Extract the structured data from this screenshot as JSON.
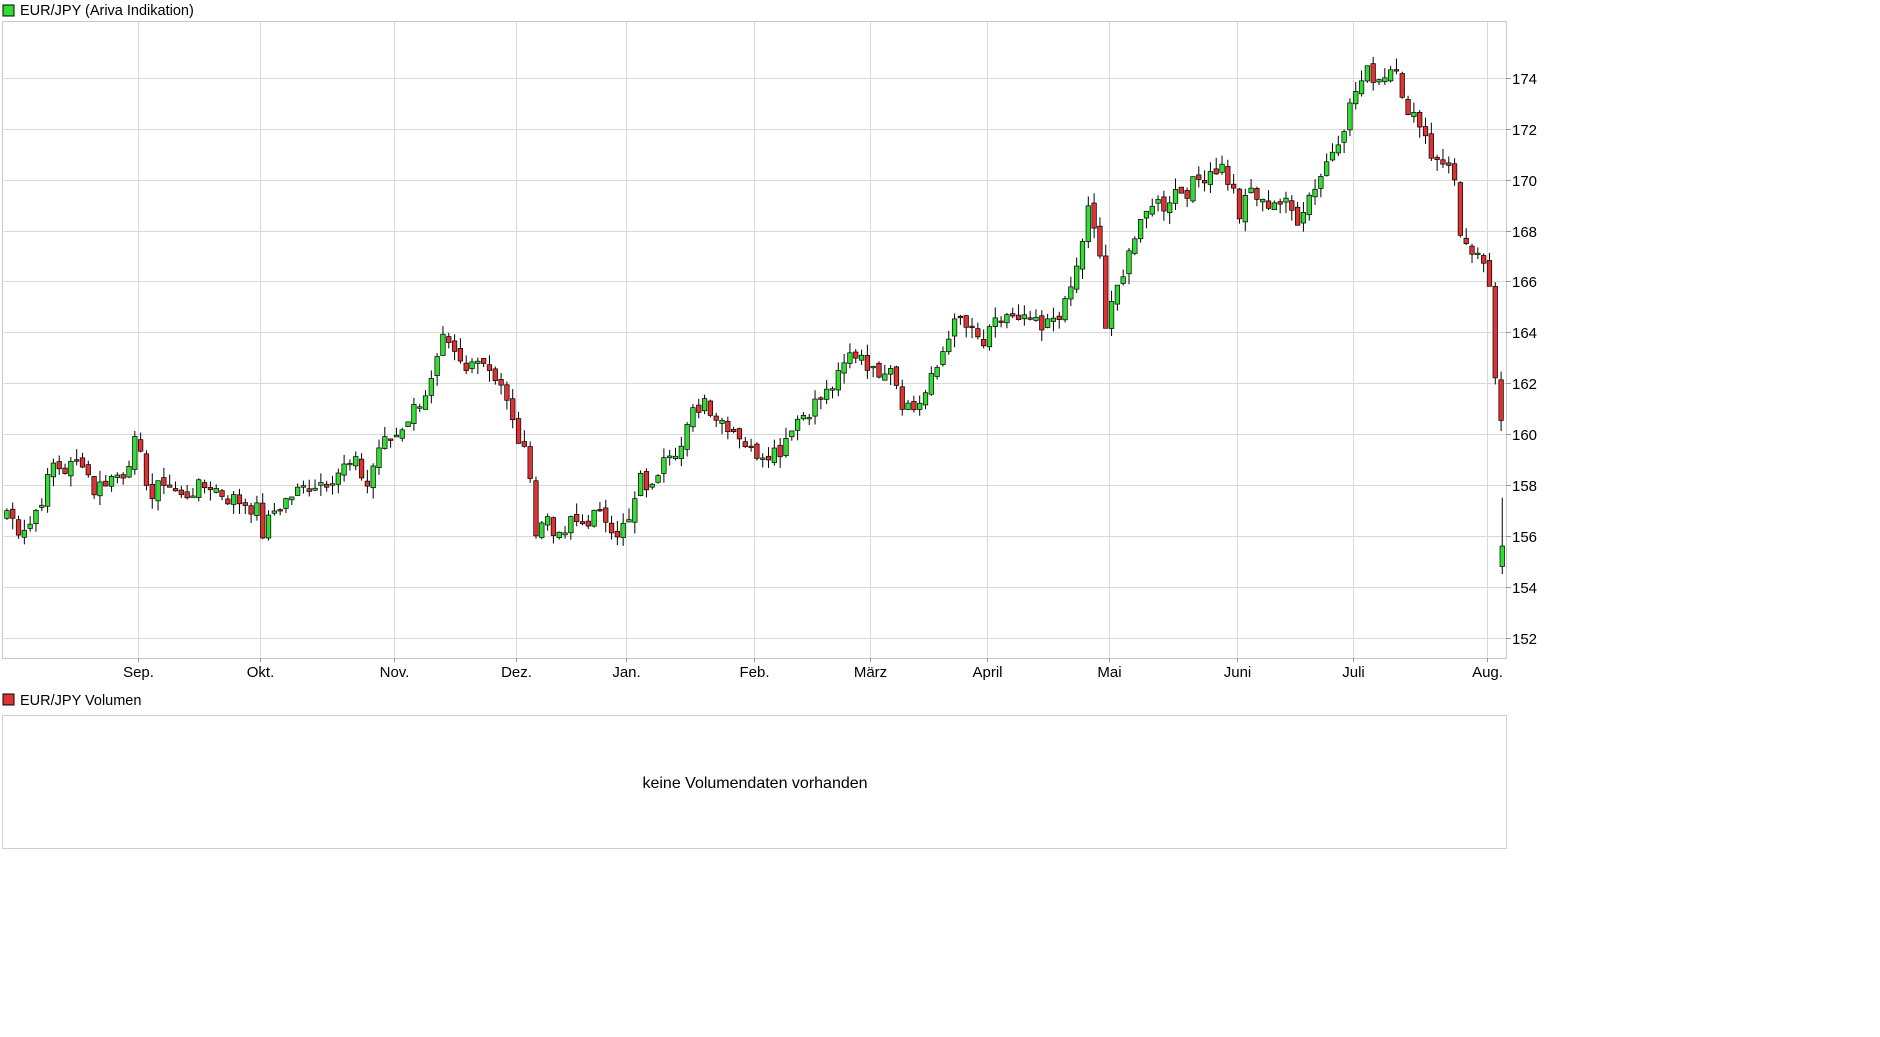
{
  "colors": {
    "up": "#33dd33",
    "down": "#dd3333",
    "candle_edge": "#000000",
    "grid": "#d9d9d9",
    "frame": "#c8c8c8"
  },
  "price_panel": {
    "legend_label": "EUR/JPY (Ariva Indikation)",
    "legend_color": "#33dd33"
  },
  "volume_panel": {
    "legend_label": "EUR/JPY Volumen",
    "legend_color": "#dd3333",
    "message": "keine Volumendaten vorhanden"
  },
  "chart_data": {
    "type": "candlestick",
    "title": "EUR/JPY (Ariva Indikation)",
    "xlabel": "",
    "ylabel": "",
    "grid": true,
    "ylim": [
      151.2,
      176.2
    ],
    "y_ticks": [
      152,
      154,
      156,
      158,
      160,
      162,
      164,
      166,
      168,
      170,
      172,
      174
    ],
    "x_months": [
      {
        "label": "Sep.",
        "day": 23
      },
      {
        "label": "Okt.",
        "day": 44
      },
      {
        "label": "Nov.",
        "day": 67
      },
      {
        "label": "Dez.",
        "day": 88
      },
      {
        "label": "Jan.",
        "day": 107
      },
      {
        "label": "Feb.",
        "day": 129
      },
      {
        "label": "März",
        "day": 149
      },
      {
        "label": "April",
        "day": 169
      },
      {
        "label": "Mai",
        "day": 190
      },
      {
        "label": "Juni",
        "day": 212
      },
      {
        "label": "Juli",
        "day": 232
      },
      {
        "label": "Aug.",
        "day": 255
      }
    ],
    "days": 258,
    "anchors": [
      [
        0,
        157.0
      ],
      [
        2,
        156.3
      ],
      [
        4,
        156.5
      ],
      [
        6,
        157.5
      ],
      [
        8,
        158.8
      ],
      [
        10,
        158.6
      ],
      [
        13,
        159.0
      ],
      [
        15,
        157.8
      ],
      [
        17,
        158.2
      ],
      [
        20,
        158.5
      ],
      [
        22,
        159.6
      ],
      [
        23,
        159.0
      ],
      [
        25,
        157.5
      ],
      [
        27,
        158.2
      ],
      [
        30,
        157.5
      ],
      [
        32,
        157.8
      ],
      [
        35,
        158.0
      ],
      [
        38,
        157.5
      ],
      [
        41,
        157.3
      ],
      [
        43,
        157.0
      ],
      [
        44,
        156.1
      ],
      [
        46,
        157.0
      ],
      [
        49,
        157.6
      ],
      [
        52,
        158.0
      ],
      [
        55,
        158.2
      ],
      [
        58,
        158.7
      ],
      [
        60,
        158.8
      ],
      [
        62,
        158.0
      ],
      [
        64,
        159.5
      ],
      [
        67,
        160.0
      ],
      [
        70,
        161.0
      ],
      [
        73,
        162.0
      ],
      [
        75,
        163.6
      ],
      [
        77,
        163.0
      ],
      [
        79,
        162.4
      ],
      [
        81,
        163.2
      ],
      [
        83,
        162.6
      ],
      [
        85,
        162.0
      ],
      [
        87,
        160.4
      ],
      [
        89,
        159.2
      ],
      [
        90,
        158.6
      ],
      [
        91,
        156.1
      ],
      [
        93,
        156.8
      ],
      [
        95,
        155.8
      ],
      [
        97,
        156.5
      ],
      [
        99,
        156.5
      ],
      [
        101,
        156.8
      ],
      [
        103,
        156.7
      ],
      [
        105,
        156.2
      ],
      [
        107,
        156.5
      ],
      [
        109,
        158.2
      ],
      [
        111,
        157.8
      ],
      [
        113,
        159.4
      ],
      [
        116,
        159.5
      ],
      [
        118,
        160.8
      ],
      [
        120,
        161.4
      ],
      [
        122,
        160.7
      ],
      [
        124,
        160.4
      ],
      [
        126,
        160.0
      ],
      [
        128,
        159.3
      ],
      [
        130,
        159.3
      ],
      [
        133,
        159.4
      ],
      [
        135,
        160.4
      ],
      [
        138,
        161.0
      ],
      [
        141,
        161.6
      ],
      [
        143,
        162.2
      ],
      [
        145,
        163.1
      ],
      [
        147,
        163.2
      ],
      [
        149,
        162.4
      ],
      [
        152,
        162.8
      ],
      [
        154,
        161.3
      ],
      [
        156,
        161.0
      ],
      [
        158,
        161.6
      ],
      [
        160,
        162.6
      ],
      [
        162,
        164.0
      ],
      [
        164,
        164.5
      ],
      [
        166,
        163.9
      ],
      [
        168,
        163.5
      ],
      [
        170,
        164.3
      ],
      [
        172,
        164.7
      ],
      [
        174,
        164.3
      ],
      [
        176,
        164.5
      ],
      [
        178,
        164.0
      ],
      [
        180,
        164.6
      ],
      [
        182,
        165.0
      ],
      [
        184,
        166.5
      ],
      [
        186,
        168.8
      ],
      [
        188,
        167.0
      ],
      [
        189,
        164.2
      ],
      [
        191,
        165.7
      ],
      [
        193,
        167.3
      ],
      [
        195,
        168.1
      ],
      [
        197,
        169.2
      ],
      [
        199,
        169.0
      ],
      [
        201,
        169.6
      ],
      [
        203,
        169.6
      ],
      [
        205,
        170.0
      ],
      [
        207,
        170.4
      ],
      [
        209,
        170.5
      ],
      [
        211,
        169.5
      ],
      [
        212,
        168.6
      ],
      [
        214,
        169.6
      ],
      [
        216,
        169.0
      ],
      [
        218,
        169.2
      ],
      [
        220,
        169.0
      ],
      [
        222,
        168.5
      ],
      [
        224,
        169.4
      ],
      [
        226,
        170.2
      ],
      [
        228,
        171.2
      ],
      [
        230,
        172.2
      ],
      [
        232,
        173.5
      ],
      [
        234,
        174.2
      ],
      [
        236,
        174.0
      ],
      [
        238,
        174.4
      ],
      [
        239,
        174.6
      ],
      [
        241,
        172.4
      ],
      [
        243,
        172.4
      ],
      [
        245,
        171.0
      ],
      [
        247,
        170.8
      ],
      [
        249,
        170.0
      ],
      [
        250,
        168.0
      ],
      [
        252,
        166.8
      ],
      [
        254,
        166.8
      ],
      [
        255,
        165.5
      ],
      [
        256,
        162.0
      ],
      [
        257,
        160.6
      ],
      [
        258,
        160.0
      ]
    ],
    "last_candle": {
      "open": 154.8,
      "high": 157.5,
      "low": 154.5,
      "close": 155.6
    },
    "seed": 7
  }
}
